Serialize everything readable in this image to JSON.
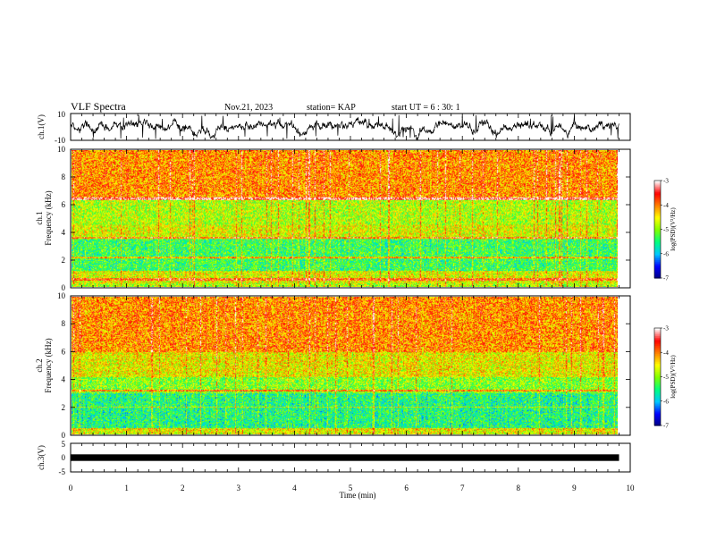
{
  "header": {
    "title": "VLF Spectra",
    "date": "Nov.21, 2023",
    "station": "station= KAP",
    "start": "start  UT =  6 : 30: 1"
  },
  "chart_data": [
    {
      "type": "line",
      "name": "ch1-waveform",
      "ylabel": "ch.1(V)",
      "ylim": [
        -10,
        10
      ],
      "yticks": [
        "10",
        "-10"
      ],
      "xlim": [
        0,
        10
      ]
    },
    {
      "type": "heatmap",
      "name": "ch1-spectrogram",
      "ylabel_line1": "ch.1",
      "ylabel_line2": "Frequency  (kHz)",
      "ylim": [
        0,
        10
      ],
      "yticks": [
        "0",
        "2",
        "4",
        "6",
        "8",
        "10"
      ],
      "xlim": [
        0,
        10
      ],
      "data_end_min": 9.8,
      "colorbar": {
        "label": "log(PSD)(V²/Hz)",
        "range": [
          -7,
          -3
        ],
        "ticks": [
          "-3",
          "-4",
          "-5",
          "-6",
          "-7"
        ],
        "colors": [
          "#000080",
          "#0000ff",
          "#00c8ff",
          "#00ff80",
          "#80ff00",
          "#ffff00",
          "#ff8000",
          "#ff0000",
          "#ffffff"
        ]
      }
    },
    {
      "type": "heatmap",
      "name": "ch2-spectrogram",
      "ylabel_line1": "ch.2",
      "ylabel_line2": "Frequency  (kHz)",
      "ylim": [
        0,
        10
      ],
      "yticks": [
        "0",
        "2",
        "4",
        "6",
        "8",
        "10"
      ],
      "xlim": [
        0,
        10
      ],
      "data_end_min": 9.8,
      "colorbar": {
        "label": "log(PSD)(V²/Hz)",
        "range": [
          -7,
          -3
        ],
        "ticks": [
          "-3",
          "-4",
          "-5",
          "-6",
          "-7"
        ],
        "colors": [
          "#000080",
          "#0000ff",
          "#00c8ff",
          "#00ff80",
          "#80ff00",
          "#ffff00",
          "#ff8000",
          "#ff0000",
          "#ffffff"
        ]
      }
    },
    {
      "type": "line",
      "name": "ch3-waveform",
      "ylabel": "ch.3(V)",
      "ylim": [
        -5,
        5
      ],
      "yticks": [
        "5",
        "0",
        "-5"
      ],
      "xlim": [
        0,
        10
      ],
      "level_v": [
        -0.4,
        0.4
      ]
    }
  ],
  "xaxis": {
    "label": "Time  (min)",
    "ticks": [
      "0",
      "1",
      "2",
      "3",
      "4",
      "5",
      "6",
      "7",
      "8",
      "9",
      "10"
    ]
  }
}
